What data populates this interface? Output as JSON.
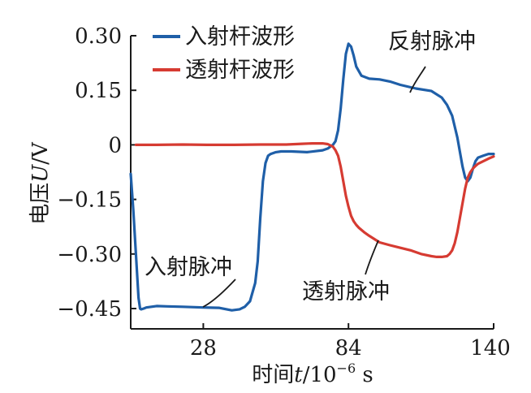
{
  "chart_data": {
    "type": "line",
    "xlabel_prefix": "时间",
    "xlabel_var": "t",
    "xlabel_unit": "/10",
    "xlabel_exp": "−6",
    "xlabel_suffix": " s",
    "ylabel_prefix": "电压",
    "ylabel_var": "U",
    "ylabel_suffix": "/V",
    "xlim": [
      0,
      140
    ],
    "ylim": [
      -0.5,
      0.3
    ],
    "x_ticks": [
      28,
      84,
      140
    ],
    "x_tick_labels": [
      "28",
      "84",
      "140"
    ],
    "y_ticks": [
      0.3,
      0.15,
      0,
      -0.15,
      -0.3,
      -0.45
    ],
    "y_tick_labels": [
      "0.30",
      "0.15",
      "0",
      "−0.15",
      "−0.30",
      "−0.45"
    ],
    "legend_position": "top-left",
    "series": [
      {
        "name": "入射杆波形",
        "color": "#1f5fa8",
        "x": [
          0,
          1,
          2,
          3,
          3.6,
          4,
          5,
          6,
          8,
          10,
          14,
          20,
          28,
          34,
          39,
          42,
          44,
          46,
          48,
          49,
          50,
          51,
          52,
          53,
          54,
          56,
          58,
          62,
          68,
          74,
          76,
          77,
          78,
          79,
          80,
          81,
          82,
          83,
          84,
          85,
          86,
          87,
          89,
          92,
          96,
          100,
          104,
          110,
          116,
          120,
          122,
          124,
          125,
          126,
          127,
          128,
          129,
          130,
          131,
          132,
          133,
          134,
          136,
          138,
          140
        ],
        "y": [
          -0.08,
          -0.18,
          -0.3,
          -0.42,
          -0.45,
          -0.452,
          -0.45,
          -0.447,
          -0.445,
          -0.443,
          -0.444,
          -0.445,
          -0.447,
          -0.448,
          -0.455,
          -0.452,
          -0.445,
          -0.43,
          -0.38,
          -0.32,
          -0.2,
          -0.1,
          -0.05,
          -0.03,
          -0.025,
          -0.02,
          -0.018,
          -0.018,
          -0.02,
          -0.015,
          -0.01,
          -0.005,
          0.0,
          0.01,
          0.04,
          0.1,
          0.18,
          0.25,
          0.278,
          0.27,
          0.245,
          0.215,
          0.19,
          0.182,
          0.18,
          0.174,
          0.165,
          0.155,
          0.148,
          0.13,
          0.11,
          0.08,
          0.05,
          0.02,
          -0.02,
          -0.06,
          -0.09,
          -0.1,
          -0.09,
          -0.065,
          -0.045,
          -0.035,
          -0.03,
          -0.025,
          -0.025
        ]
      },
      {
        "name": "透射杆波形",
        "color": "#d63b32",
        "x": [
          2,
          10,
          20,
          30,
          40,
          50,
          60,
          66,
          70,
          74,
          76,
          78,
          79,
          80,
          81,
          82,
          83,
          84,
          85,
          86,
          87,
          88,
          90,
          92,
          96,
          100,
          104,
          108,
          112,
          116,
          118,
          120,
          122,
          123,
          124,
          125,
          126,
          127,
          128,
          129,
          130,
          131,
          132,
          133,
          134,
          136,
          138,
          140
        ],
        "y": [
          0.0,
          0.0,
          0.001,
          0.0,
          0.0,
          0.001,
          0.001,
          0.003,
          0.004,
          0.004,
          0.002,
          -0.005,
          -0.015,
          -0.03,
          -0.06,
          -0.1,
          -0.14,
          -0.17,
          -0.195,
          -0.21,
          -0.22,
          -0.228,
          -0.24,
          -0.25,
          -0.268,
          -0.276,
          -0.283,
          -0.29,
          -0.3,
          -0.306,
          -0.308,
          -0.308,
          -0.306,
          -0.3,
          -0.29,
          -0.27,
          -0.24,
          -0.2,
          -0.16,
          -0.12,
          -0.09,
          -0.075,
          -0.065,
          -0.058,
          -0.052,
          -0.045,
          -0.038,
          -0.032
        ]
      }
    ],
    "annotations": [
      {
        "text": "反射脉冲",
        "anchor_x": 111,
        "anchor_y": 0.15
      },
      {
        "text": "入射脉冲",
        "anchor_x": 28,
        "anchor_y": -0.445
      },
      {
        "text": "透射脉冲",
        "anchor_x": 95,
        "anchor_y": -0.27
      }
    ]
  }
}
